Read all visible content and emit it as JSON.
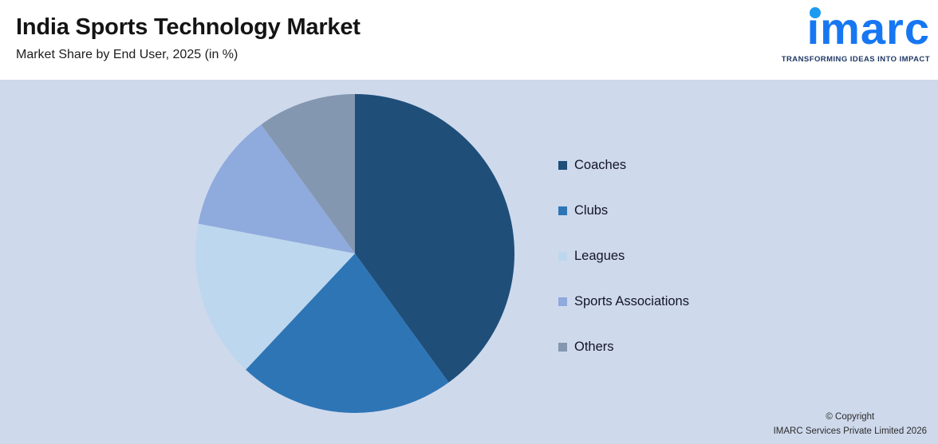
{
  "header": {
    "title": "India Sports Technology Market",
    "subtitle": "Market Share by End User, 2025 (in %)"
  },
  "logo": {
    "wordmark": "imarc",
    "tagline": "TRANSFORMING IDEAS INTO IMPACT"
  },
  "chart_data": {
    "type": "pie",
    "title": "India Sports Technology Market",
    "subtitle": "Market Share by End User, 2025 (in %)",
    "unit": "%",
    "categories": [
      "Coaches",
      "Clubs",
      "Leagues",
      "Sports Associations",
      "Others"
    ],
    "values": [
      40,
      22,
      16,
      12,
      10
    ],
    "colors": [
      "#1F4E79",
      "#2E75B6",
      "#BDD7EE",
      "#8FAADC",
      "#8497B0"
    ],
    "start_angle_deg": 0,
    "direction": "clockwise",
    "legend_position": "right"
  },
  "footer": {
    "line1": "© Copyright",
    "line2": "IMARC Services Private Limited 2026"
  },
  "colors": {
    "page_background": "#CED9EC",
    "header_background": "#FFFFFF",
    "logo_blue": "#1777F2",
    "logo_dot": "#1D9BF0",
    "tagline_navy": "#1F3864",
    "legend_text": "#14142B"
  }
}
